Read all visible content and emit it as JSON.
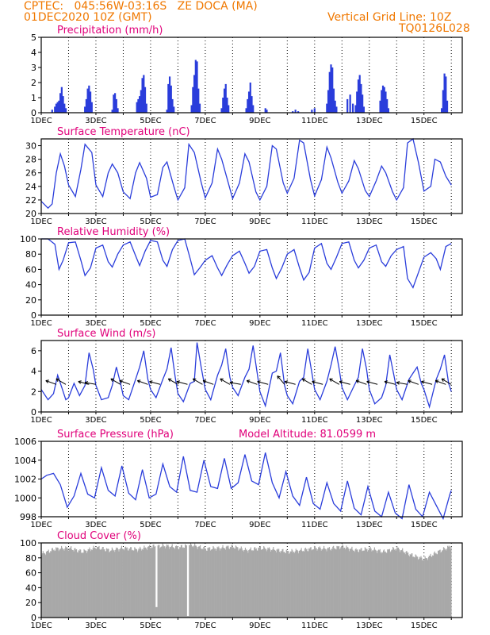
{
  "header": {
    "line1": "CPTEC:   045:56W-03:16S   ZE DOCA (MA)",
    "line2": "01DEC2020 10Z (GMT)",
    "grid_note": "Vertical Grid Line: 10Z",
    "code": "TQ0126L028"
  },
  "colors": {
    "header": "#f07800",
    "panel_title": "#e0007a",
    "series": "#2a3ddb",
    "cloud": "#a8a8a8"
  },
  "x_axis": {
    "tick_labels": [
      "1DEC",
      "3DEC",
      "5DEC",
      "7DEC",
      "9DEC",
      "11DEC",
      "13DEC",
      "15DEC"
    ],
    "start_day": 1,
    "end_day": 16.4,
    "grid_days": [
      2,
      3,
      4,
      5,
      6,
      7,
      8,
      9,
      10,
      11,
      12,
      13,
      14,
      15,
      16
    ]
  },
  "chart_data": [
    {
      "type": "bar",
      "title": "Precipitation (mm/h)",
      "ylim": [
        0,
        5
      ],
      "yticks": [
        "0",
        "1",
        "2",
        "3",
        "4",
        "5"
      ],
      "x_unit": "day of December 2020",
      "points": [
        [
          1.4,
          0.2
        ],
        [
          1.5,
          0.4
        ],
        [
          1.55,
          0.6
        ],
        [
          1.6,
          0.7
        ],
        [
          1.65,
          0.8
        ],
        [
          1.7,
          1.3
        ],
        [
          1.75,
          1.7
        ],
        [
          1.8,
          1.1
        ],
        [
          1.85,
          0.6
        ],
        [
          1.9,
          0.3
        ],
        [
          2.6,
          0.4
        ],
        [
          2.65,
          0.9
        ],
        [
          2.7,
          1.6
        ],
        [
          2.75,
          1.8
        ],
        [
          2.8,
          1.4
        ],
        [
          2.85,
          0.7
        ],
        [
          3.6,
          0.2
        ],
        [
          3.65,
          1.2
        ],
        [
          3.7,
          1.3
        ],
        [
          3.75,
          0.9
        ],
        [
          3.8,
          0.3
        ],
        [
          4.5,
          0.7
        ],
        [
          4.55,
          0.9
        ],
        [
          4.6,
          1.1
        ],
        [
          4.65,
          1.5
        ],
        [
          4.7,
          2.3
        ],
        [
          4.75,
          2.5
        ],
        [
          4.8,
          1.7
        ],
        [
          4.85,
          0.6
        ],
        [
          5.6,
          0.2
        ],
        [
          5.65,
          1.9
        ],
        [
          5.7,
          2.4
        ],
        [
          5.75,
          1.8
        ],
        [
          5.8,
          0.9
        ],
        [
          5.85,
          0.4
        ],
        [
          6.5,
          0.5
        ],
        [
          6.55,
          1.7
        ],
        [
          6.6,
          2.5
        ],
        [
          6.65,
          3.5
        ],
        [
          6.7,
          3.4
        ],
        [
          6.75,
          1.6
        ],
        [
          6.8,
          0.6
        ],
        [
          7.6,
          0.3
        ],
        [
          7.65,
          1.0
        ],
        [
          7.7,
          1.6
        ],
        [
          7.75,
          1.9
        ],
        [
          7.8,
          1.0
        ],
        [
          7.85,
          0.5
        ],
        [
          8.5,
          0.3
        ],
        [
          8.55,
          0.9
        ],
        [
          8.6,
          1.4
        ],
        [
          8.65,
          2.0
        ],
        [
          8.7,
          1.1
        ],
        [
          8.75,
          0.5
        ],
        [
          9.2,
          0.3
        ],
        [
          9.25,
          0.2
        ],
        [
          10.2,
          0.1
        ],
        [
          10.3,
          0.2
        ],
        [
          10.4,
          0.1
        ],
        [
          10.9,
          0.2
        ],
        [
          11.0,
          0.3
        ],
        [
          11.45,
          0.6
        ],
        [
          11.5,
          1.5
        ],
        [
          11.55,
          2.7
        ],
        [
          11.6,
          3.2
        ],
        [
          11.65,
          3.0
        ],
        [
          11.7,
          1.6
        ],
        [
          11.75,
          0.8
        ],
        [
          11.8,
          0.4
        ],
        [
          12.2,
          0.9
        ],
        [
          12.3,
          1.2
        ],
        [
          12.4,
          0.6
        ],
        [
          12.5,
          0.5
        ],
        [
          12.55,
          1.4
        ],
        [
          12.6,
          2.2
        ],
        [
          12.65,
          2.5
        ],
        [
          12.7,
          1.9
        ],
        [
          12.75,
          1.2
        ],
        [
          12.8,
          0.4
        ],
        [
          13.4,
          0.8
        ],
        [
          13.45,
          1.5
        ],
        [
          13.5,
          1.8
        ],
        [
          13.55,
          1.7
        ],
        [
          13.6,
          1.4
        ],
        [
          13.65,
          0.9
        ],
        [
          13.7,
          0.3
        ],
        [
          15.65,
          0.3
        ],
        [
          15.7,
          1.5
        ],
        [
          15.75,
          2.6
        ],
        [
          15.8,
          2.4
        ],
        [
          15.85,
          0.8
        ]
      ]
    },
    {
      "type": "line",
      "title": "Surface Temperature (nC)",
      "ylim": [
        20,
        31
      ],
      "yticks": [
        "20",
        "22",
        "24",
        "26",
        "28",
        "30"
      ],
      "x": [
        1.0,
        1.25,
        1.4,
        1.55,
        1.7,
        1.85,
        2.0,
        2.25,
        2.45,
        2.6,
        2.85,
        3.0,
        3.25,
        3.45,
        3.6,
        3.8,
        4.0,
        4.25,
        4.45,
        4.6,
        4.85,
        5.0,
        5.25,
        5.45,
        5.6,
        5.85,
        6.0,
        6.25,
        6.4,
        6.6,
        6.85,
        7.0,
        7.25,
        7.45,
        7.6,
        7.85,
        8.0,
        8.25,
        8.45,
        8.6,
        8.85,
        9.0,
        9.25,
        9.45,
        9.6,
        9.85,
        10.0,
        10.25,
        10.45,
        10.6,
        10.85,
        11.0,
        11.25,
        11.45,
        11.6,
        11.85,
        12.0,
        12.25,
        12.45,
        12.6,
        12.85,
        13.0,
        13.25,
        13.45,
        13.6,
        13.85,
        14.0,
        14.25,
        14.4,
        14.6,
        14.8,
        15.0,
        15.25,
        15.4,
        15.6,
        15.8,
        16.0
      ],
      "y": [
        21.8,
        20.8,
        21.4,
        26.0,
        28.8,
        27.0,
        24.2,
        22.5,
        26.5,
        30.2,
        29.0,
        24.2,
        22.5,
        26.0,
        27.3,
        26.0,
        23.2,
        22.2,
        26.0,
        27.5,
        25.2,
        22.4,
        22.8,
        26.8,
        27.6,
        24.0,
        22.0,
        23.8,
        30.2,
        29.0,
        24.6,
        22.3,
        24.5,
        29.5,
        28.0,
        24.4,
        22.2,
        24.5,
        28.8,
        27.6,
        23.2,
        22.0,
        24.0,
        30.0,
        29.5,
        24.5,
        23.0,
        25.2,
        30.8,
        30.4,
        25.0,
        22.6,
        25.0,
        29.8,
        28.2,
        24.6,
        23.0,
        24.8,
        27.8,
        26.6,
        23.4,
        22.5,
        24.8,
        27.0,
        26.0,
        23.2,
        22.0,
        23.8,
        30.4,
        31.0,
        27.5,
        23.3,
        24.0,
        28.0,
        27.6,
        25.5,
        24.2
      ]
    },
    {
      "type": "line",
      "title": "Relative Humidity (%)",
      "ylim": [
        0,
        100
      ],
      "yticks": [
        "0",
        "20",
        "40",
        "60",
        "80",
        "100"
      ],
      "x": [
        1.0,
        1.25,
        1.5,
        1.65,
        1.8,
        2.0,
        2.25,
        2.45,
        2.6,
        2.8,
        3.0,
        3.25,
        3.45,
        3.6,
        3.8,
        4.0,
        4.25,
        4.45,
        4.6,
        4.8,
        5.0,
        5.25,
        5.45,
        5.6,
        5.8,
        6.0,
        6.25,
        6.45,
        6.6,
        6.8,
        7.0,
        7.25,
        7.45,
        7.6,
        7.8,
        8.0,
        8.25,
        8.45,
        8.6,
        8.8,
        9.0,
        9.25,
        9.45,
        9.6,
        9.8,
        10.0,
        10.25,
        10.45,
        10.6,
        10.8,
        11.0,
        11.25,
        11.45,
        11.6,
        11.8,
        12.0,
        12.25,
        12.45,
        12.6,
        12.8,
        13.0,
        13.25,
        13.45,
        13.6,
        13.8,
        14.0,
        14.25,
        14.4,
        14.6,
        14.8,
        15.0,
        15.25,
        15.45,
        15.6,
        15.8,
        16.0
      ],
      "y": [
        100,
        100,
        93,
        60,
        72,
        95,
        96,
        72,
        52,
        62,
        88,
        92,
        70,
        63,
        80,
        92,
        96,
        78,
        65,
        84,
        98,
        96,
        72,
        64,
        86,
        98,
        100,
        74,
        53,
        62,
        72,
        78,
        62,
        52,
        66,
        78,
        84,
        68,
        55,
        64,
        84,
        86,
        62,
        48,
        62,
        80,
        86,
        62,
        46,
        56,
        88,
        94,
        68,
        60,
        76,
        94,
        96,
        72,
        62,
        72,
        88,
        92,
        70,
        64,
        78,
        86,
        90,
        48,
        36,
        56,
        76,
        82,
        74,
        60,
        90,
        94
      ]
    },
    {
      "type": "line",
      "title": "Surface Wind (m/s)",
      "ylim": [
        0,
        7
      ],
      "yticks": [
        "0",
        "2",
        "4",
        "6"
      ],
      "x": [
        1.0,
        1.25,
        1.45,
        1.6,
        1.75,
        1.9,
        2.0,
        2.2,
        2.4,
        2.6,
        2.75,
        2.9,
        3.0,
        3.2,
        3.45,
        3.6,
        3.75,
        3.9,
        4.0,
        4.2,
        4.45,
        4.6,
        4.75,
        4.9,
        5.0,
        5.2,
        5.45,
        5.6,
        5.75,
        5.9,
        6.0,
        6.2,
        6.45,
        6.6,
        6.7,
        6.85,
        7.0,
        7.2,
        7.45,
        7.6,
        7.75,
        7.9,
        8.0,
        8.2,
        8.45,
        8.6,
        8.75,
        8.9,
        9.0,
        9.2,
        9.45,
        9.6,
        9.75,
        9.9,
        10.0,
        10.2,
        10.45,
        10.6,
        10.75,
        10.9,
        11.0,
        11.2,
        11.45,
        11.6,
        11.75,
        11.9,
        12.0,
        12.2,
        12.45,
        12.6,
        12.75,
        12.9,
        13.0,
        13.2,
        13.45,
        13.6,
        13.75,
        13.9,
        14.0,
        14.2,
        14.45,
        14.6,
        14.75,
        14.9,
        15.0,
        15.2,
        15.45,
        15.6,
        15.75,
        15.9,
        16.0
      ],
      "y": [
        2.2,
        1.2,
        1.8,
        3.6,
        2.4,
        1.2,
        1.4,
        2.8,
        1.6,
        2.6,
        5.8,
        4.2,
        2.6,
        1.2,
        1.4,
        2.6,
        4.4,
        2.8,
        1.6,
        1.2,
        3.2,
        4.4,
        6.0,
        3.2,
        2.2,
        1.4,
        3.2,
        4.2,
        6.3,
        3.4,
        1.8,
        1.0,
        2.8,
        3.0,
        6.8,
        4.4,
        2.2,
        1.2,
        3.6,
        4.6,
        6.2,
        3.4,
        2.4,
        1.6,
        3.4,
        4.2,
        6.5,
        3.8,
        2.0,
        0.6,
        3.8,
        4.0,
        5.8,
        2.6,
        1.6,
        0.8,
        3.0,
        3.4,
        6.2,
        3.8,
        2.2,
        1.2,
        3.0,
        4.6,
        6.4,
        4.2,
        2.4,
        1.2,
        2.6,
        3.4,
        6.2,
        4.2,
        2.2,
        0.8,
        1.4,
        2.6,
        5.6,
        3.6,
        2.2,
        1.2,
        3.2,
        3.8,
        4.4,
        2.8,
        2.2,
        0.5,
        3.2,
        4.2,
        5.6,
        2.8,
        2.0
      ],
      "arrows": [
        [
          1.55,
          -160
        ],
        [
          1.9,
          -150
        ],
        [
          2.75,
          -165
        ],
        [
          3.0,
          -170
        ],
        [
          3.9,
          -150
        ],
        [
          4.25,
          -160
        ],
        [
          4.9,
          -160
        ],
        [
          5.35,
          -165
        ],
        [
          6.0,
          -150
        ],
        [
          6.35,
          -165
        ],
        [
          6.9,
          -150
        ],
        [
          7.3,
          -160
        ],
        [
          7.9,
          -150
        ],
        [
          8.3,
          -170
        ],
        [
          8.9,
          -160
        ],
        [
          9.3,
          -165
        ],
        [
          9.9,
          -130
        ],
        [
          10.3,
          -165
        ],
        [
          10.9,
          -150
        ],
        [
          11.3,
          -165
        ],
        [
          11.9,
          -150
        ],
        [
          12.3,
          -165
        ],
        [
          12.9,
          -160
        ],
        [
          13.3,
          -165
        ],
        [
          13.95,
          -165
        ],
        [
          14.4,
          -170
        ],
        [
          14.8,
          -160
        ],
        [
          15.3,
          -165
        ],
        [
          15.8,
          -160
        ],
        [
          16.0,
          -150
        ]
      ]
    },
    {
      "type": "line",
      "title": "Surface Pressure (hPa)",
      "annotation": "Model Altitude: 81.0599 m",
      "ylim": [
        998,
        1006
      ],
      "yticks": [
        "998",
        "1000",
        "1002",
        "1004",
        "1006"
      ],
      "x": [
        1.0,
        1.2,
        1.45,
        1.7,
        1.95,
        2.2,
        2.45,
        2.7,
        2.95,
        3.2,
        3.45,
        3.7,
        3.95,
        4.2,
        4.45,
        4.7,
        4.95,
        5.2,
        5.45,
        5.7,
        5.95,
        6.2,
        6.45,
        6.7,
        6.95,
        7.2,
        7.45,
        7.7,
        7.95,
        8.2,
        8.45,
        8.7,
        8.95,
        9.2,
        9.45,
        9.7,
        9.95,
        10.2,
        10.45,
        10.7,
        10.95,
        11.2,
        11.45,
        11.7,
        11.95,
        12.2,
        12.45,
        12.7,
        12.95,
        13.2,
        13.45,
        13.7,
        13.95,
        14.2,
        14.45,
        14.7,
        14.95,
        15.2,
        15.45,
        15.7,
        15.95,
        16.0
      ],
      "y": [
        1002.0,
        1002.4,
        1002.6,
        1001.4,
        999.0,
        1000.2,
        1002.6,
        1000.4,
        1000.0,
        1003.2,
        1000.8,
        1000.2,
        1003.4,
        1000.5,
        999.8,
        1003.0,
        1000.0,
        1000.4,
        1003.6,
        1001.2,
        1000.6,
        1004.4,
        1000.8,
        1000.6,
        1004.0,
        1001.2,
        1001.0,
        1004.2,
        1001.0,
        1001.6,
        1004.6,
        1001.8,
        1001.4,
        1004.8,
        1001.6,
        1000.0,
        1002.8,
        1000.2,
        999.2,
        1002.2,
        999.4,
        998.8,
        1001.6,
        999.4,
        998.6,
        1001.8,
        998.9,
        998.2,
        1001.2,
        998.6,
        998.0,
        1000.6,
        998.4,
        997.8,
        1001.4,
        998.8,
        998.0,
        1000.6,
        999.2,
        997.8,
        1000.4,
        1000.8
      ]
    },
    {
      "type": "bar",
      "title": "Cloud Cover (%)",
      "ylim": [
        0,
        100
      ],
      "yticks": [
        "0",
        "20",
        "40",
        "60",
        "80",
        "100"
      ],
      "x": [
        1.0,
        1.5,
        2.0,
        2.5,
        3.0,
        3.5,
        4.0,
        4.5,
        5.0,
        5.5,
        6.0,
        6.5,
        7.0,
        7.5,
        8.0,
        8.5,
        9.0,
        9.5,
        10.0,
        10.5,
        11.0,
        11.5,
        12.0,
        12.5,
        13.0,
        13.5,
        14.0,
        14.5,
        15.0,
        15.5,
        16.0
      ],
      "y": [
        85,
        92,
        93,
        88,
        94,
        90,
        93,
        91,
        95,
        96,
        94,
        97,
        92,
        93,
        95,
        90,
        93,
        91,
        88,
        90,
        93,
        92,
        95,
        90,
        92,
        88,
        93,
        84,
        78,
        88,
        96
      ],
      "dips": [
        [
          5.2,
          14
        ],
        [
          6.35,
          2
        ]
      ]
    }
  ]
}
